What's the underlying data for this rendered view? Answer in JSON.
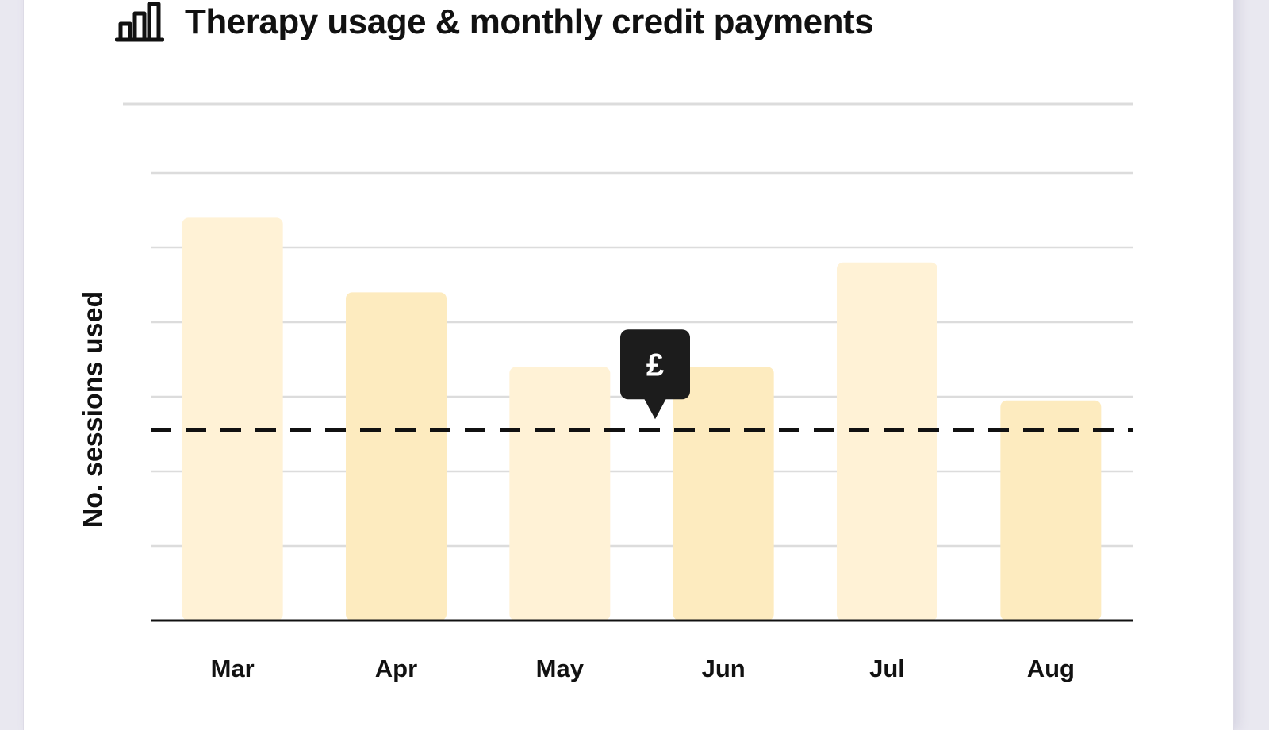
{
  "colors": {
    "bar_light": "#fff2d6",
    "bar_dark": "#fdebbf",
    "grid": "#dcdcdc",
    "axis": "#111111",
    "threshold": "#111111",
    "tooltip_bg": "#1c1c1c"
  },
  "header": {
    "icon": "bar-chart-icon"
  },
  "chart_data": {
    "type": "bar",
    "title": "Therapy usage & monthly credit payments",
    "ylabel": "No. sessions used",
    "xlabel": "",
    "categories": [
      "Mar",
      "Apr",
      "May",
      "Jun",
      "Jul",
      "Aug"
    ],
    "values": [
      5.4,
      4.4,
      3.4,
      3.4,
      4.8,
      2.95
    ],
    "bar_shades": [
      "light",
      "dark",
      "light",
      "dark",
      "light",
      "dark"
    ],
    "ylim": [
      0,
      7
    ],
    "grid": true,
    "threshold": {
      "value": 2.55,
      "style": "dashed"
    },
    "tooltip": {
      "symbol": "£",
      "position_value": 2.55
    }
  }
}
